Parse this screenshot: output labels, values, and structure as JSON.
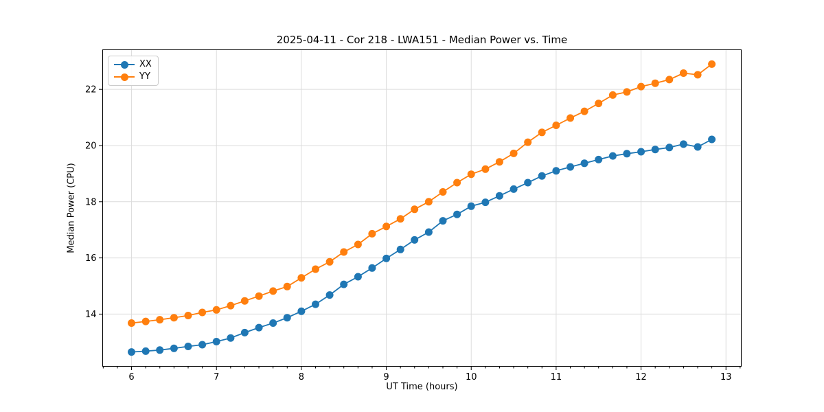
{
  "chart_data": {
    "type": "line",
    "title": "2025-04-11 - Cor 218 - LWA151 - Median Power vs. Time",
    "xlabel": "UT Time (hours)",
    "ylabel": "Median Power (CPU)",
    "xlim": [
      5.66,
      13.18
    ],
    "ylim": [
      12.14,
      23.41
    ],
    "xticks": [
      6,
      7,
      8,
      9,
      10,
      11,
      12,
      13
    ],
    "yticks": [
      14,
      16,
      18,
      20,
      22
    ],
    "x_minor_step": 0.1667,
    "grid": true,
    "legend_position": "upper left",
    "marker": "circle",
    "colors": {
      "grid": "#dcdcdc",
      "spine": "#000000",
      "tick_label": "#000000",
      "background": "#ffffff"
    },
    "x": [
      6.0,
      6.167,
      6.333,
      6.5,
      6.667,
      6.833,
      7.0,
      7.167,
      7.333,
      7.5,
      7.667,
      7.833,
      8.0,
      8.167,
      8.333,
      8.5,
      8.667,
      8.833,
      9.0,
      9.167,
      9.333,
      9.5,
      9.667,
      9.833,
      10.0,
      10.167,
      10.333,
      10.5,
      10.667,
      10.833,
      11.0,
      11.167,
      11.333,
      11.5,
      11.667,
      11.833,
      12.0,
      12.167,
      12.333,
      12.5,
      12.667,
      12.833
    ],
    "series": [
      {
        "name": "XX",
        "color": "#1f77b4",
        "values": [
          12.65,
          12.68,
          12.72,
          12.78,
          12.85,
          12.91,
          13.02,
          13.15,
          13.34,
          13.52,
          13.68,
          13.87,
          14.1,
          14.35,
          14.68,
          15.06,
          15.33,
          15.64,
          15.98,
          16.3,
          16.64,
          16.92,
          17.32,
          17.55,
          17.84,
          17.98,
          18.21,
          18.45,
          18.68,
          18.92,
          19.1,
          19.24,
          19.37,
          19.5,
          19.63,
          19.71,
          19.78,
          19.86,
          19.93,
          20.05,
          19.95,
          20.22
        ]
      },
      {
        "name": "YY",
        "color": "#ff7f0e",
        "values": [
          13.68,
          13.74,
          13.8,
          13.87,
          13.95,
          14.06,
          14.15,
          14.3,
          14.47,
          14.64,
          14.82,
          14.98,
          15.29,
          15.6,
          15.86,
          16.21,
          16.48,
          16.86,
          17.12,
          17.39,
          17.73,
          18.0,
          18.35,
          18.68,
          18.98,
          19.16,
          19.42,
          19.72,
          20.12,
          20.47,
          20.72,
          20.98,
          21.22,
          21.5,
          21.8,
          21.91,
          22.1,
          22.22,
          22.35,
          22.58,
          22.52,
          22.9
        ]
      }
    ]
  }
}
